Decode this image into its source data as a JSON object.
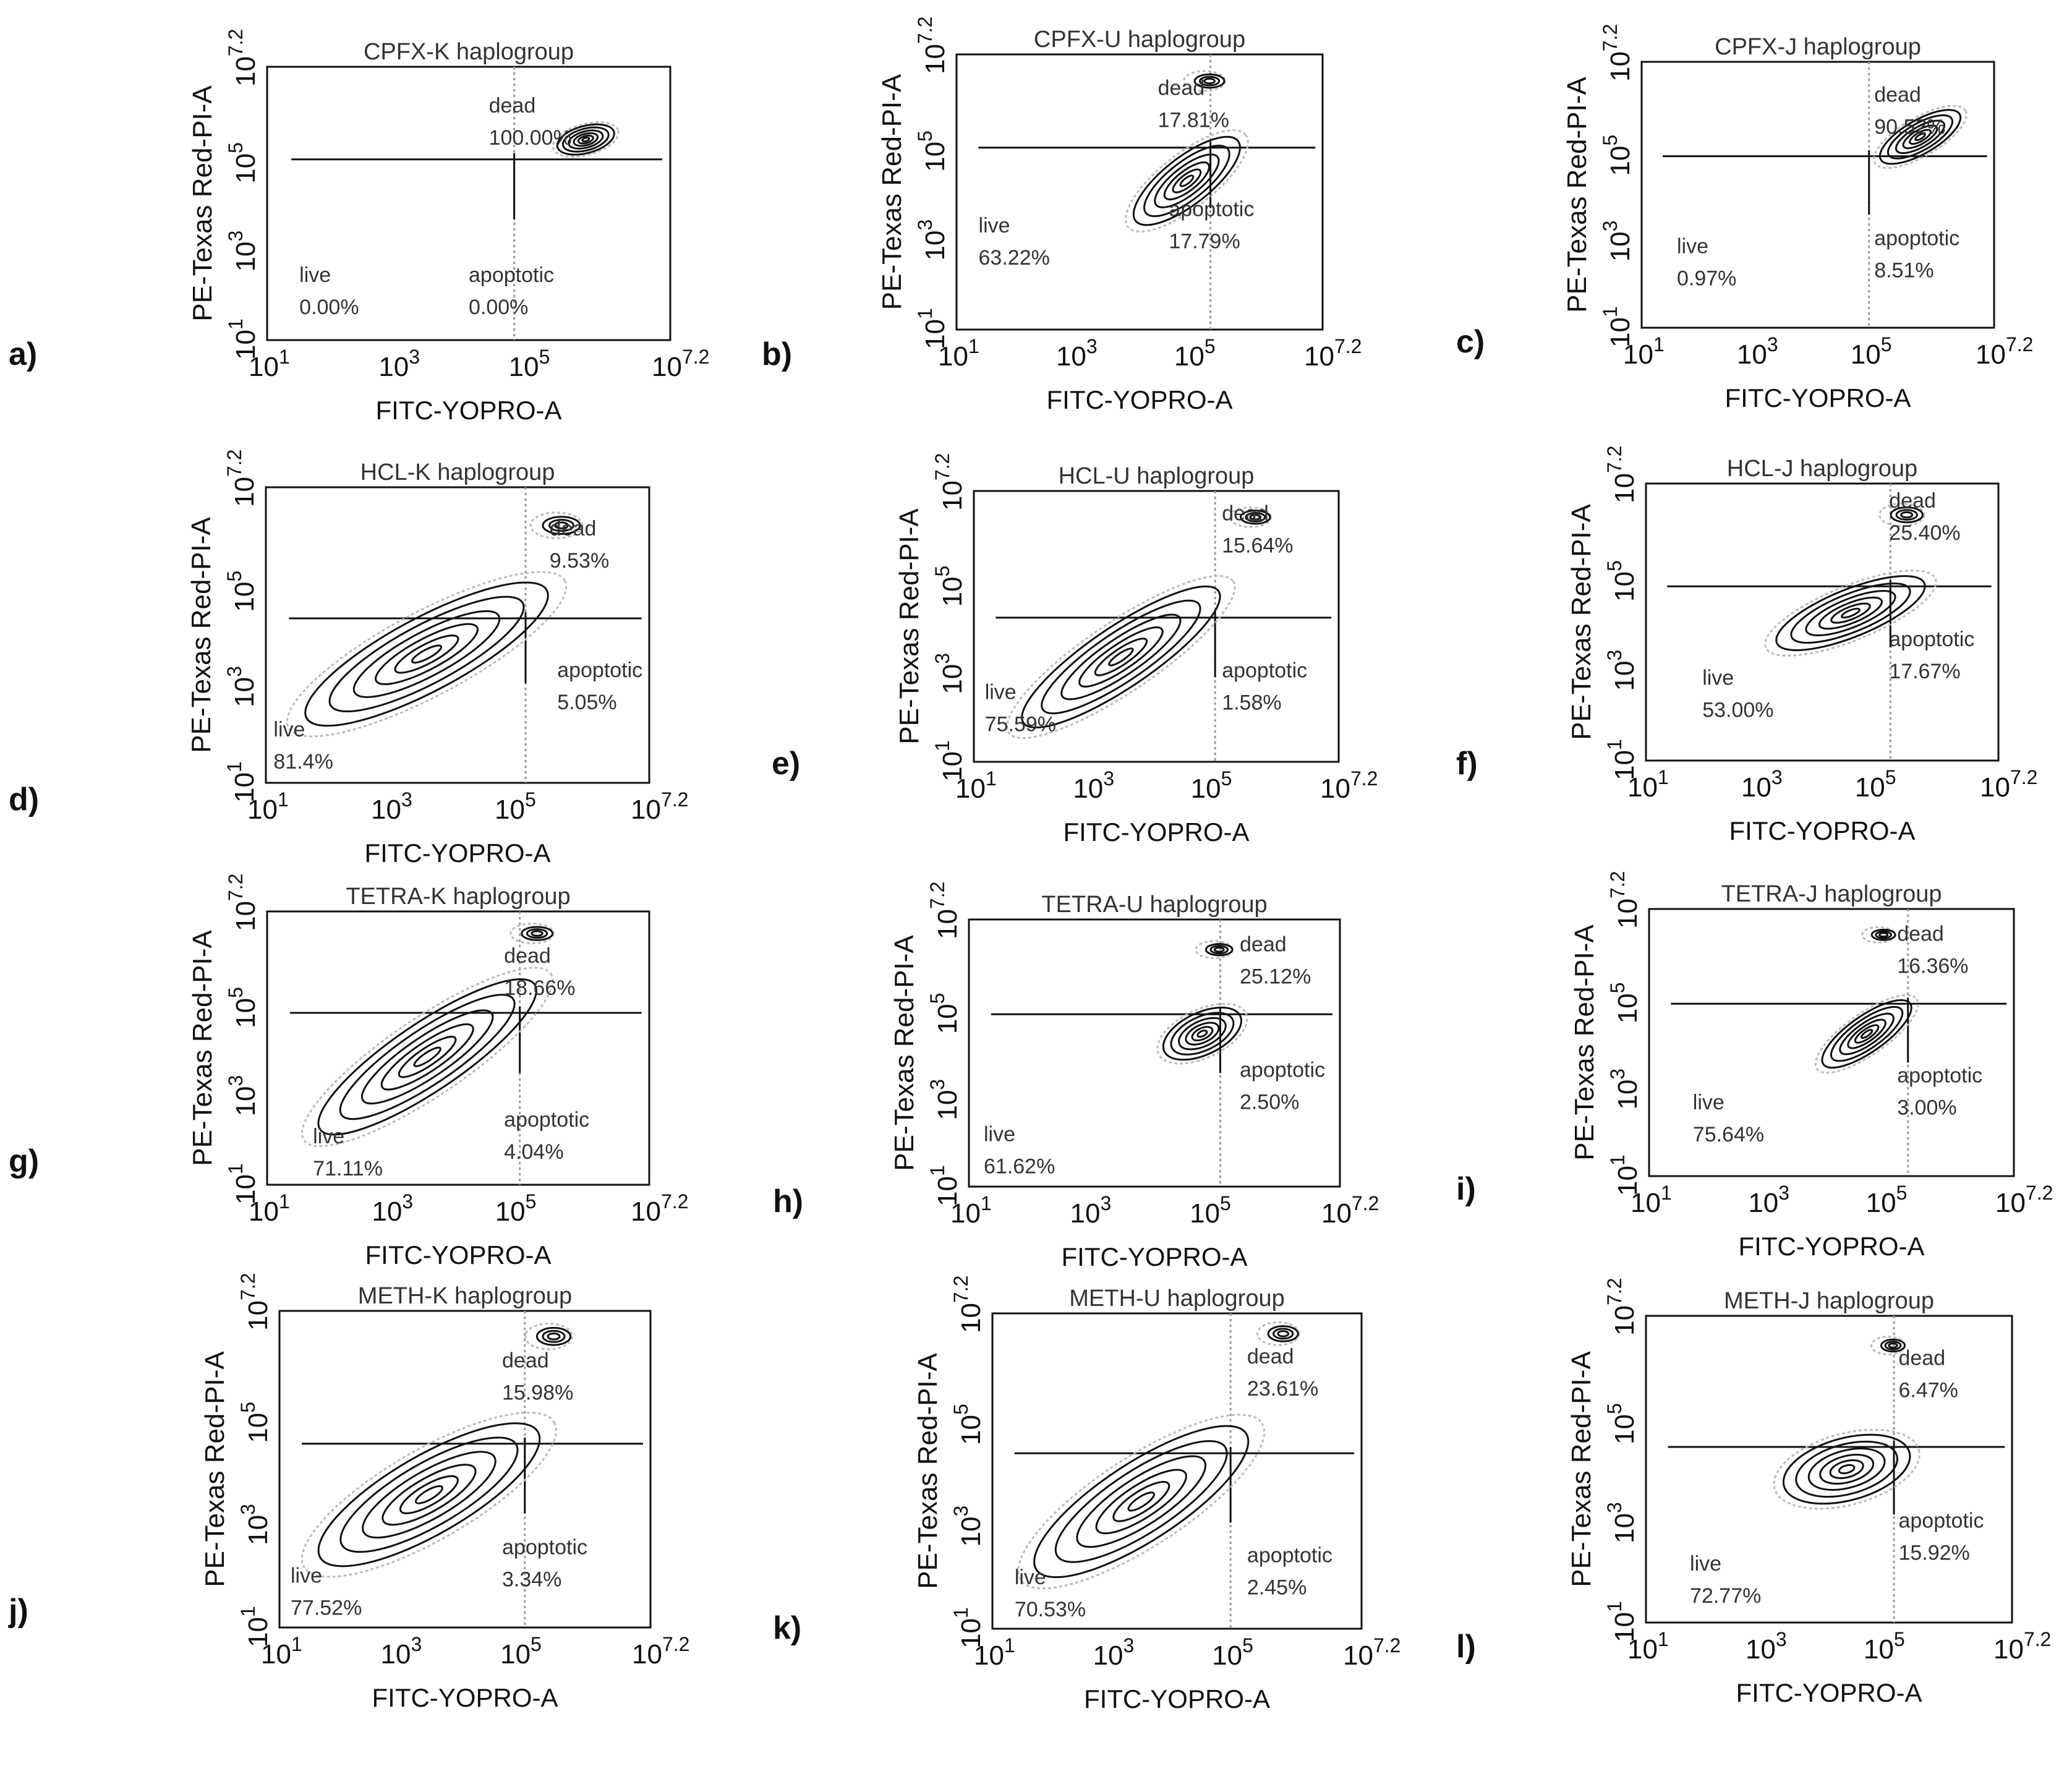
{
  "chart_data": [
    {
      "type": "scatter",
      "panel": "a)",
      "title": "CPFX-K haplogroup",
      "xlabel": "FITC-YOPRO-A",
      "ylabel": "PE-Texas Red-PI-A",
      "xticks": [
        {
          "base": "10",
          "exp": "1"
        },
        {
          "base": "10",
          "exp": "3"
        },
        {
          "base": "10",
          "exp": "5"
        },
        {
          "base": "10",
          "exp": "7.2"
        }
      ],
      "yticks": [
        {
          "base": "10",
          "exp": "1"
        },
        {
          "base": "10",
          "exp": "3"
        },
        {
          "base": "10",
          "exp": "5"
        },
        {
          "base": "10",
          "exp": "7.2"
        }
      ],
      "quadrants": [
        {
          "label": "dead",
          "value": "100.00%"
        },
        {
          "label": "live",
          "value": "0.00%"
        },
        {
          "label": "apoptotic",
          "value": "0.00%"
        }
      ]
    },
    {
      "type": "scatter",
      "panel": "b)",
      "title": "CPFX-U haplogroup",
      "xlabel": "FITC-YOPRO-A",
      "ylabel": "PE-Texas Red-PI-A",
      "xticks": [
        {
          "base": "10",
          "exp": "1"
        },
        {
          "base": "10",
          "exp": "3"
        },
        {
          "base": "10",
          "exp": "5"
        },
        {
          "base": "10",
          "exp": "7.2"
        }
      ],
      "yticks": [
        {
          "base": "10",
          "exp": "1"
        },
        {
          "base": "10",
          "exp": "3"
        },
        {
          "base": "10",
          "exp": "5"
        },
        {
          "base": "10",
          "exp": "7.2"
        }
      ],
      "quadrants": [
        {
          "label": "dead",
          "value": "17.81%"
        },
        {
          "label": "live",
          "value": "63.22%"
        },
        {
          "label": "apoptotic",
          "value": "17.79%"
        }
      ]
    },
    {
      "type": "scatter",
      "panel": "c)",
      "title": "CPFX-J haplogroup",
      "xlabel": "FITC-YOPRO-A",
      "ylabel": "PE-Texas Red-PI-A",
      "xticks": [
        {
          "base": "10",
          "exp": "1"
        },
        {
          "base": "10",
          "exp": "3"
        },
        {
          "base": "10",
          "exp": "5"
        },
        {
          "base": "10",
          "exp": "7.2"
        }
      ],
      "yticks": [
        {
          "base": "10",
          "exp": "1"
        },
        {
          "base": "10",
          "exp": "3"
        },
        {
          "base": "10",
          "exp": "5"
        },
        {
          "base": "10",
          "exp": "7.2"
        }
      ],
      "quadrants": [
        {
          "label": "dead",
          "value": "90.52%"
        },
        {
          "label": "live",
          "value": "0.97%"
        },
        {
          "label": "apoptotic",
          "value": "8.51%"
        }
      ]
    },
    {
      "type": "scatter",
      "panel": "d)",
      "title": "HCL-K haplogroup",
      "xlabel": "FITC-YOPRO-A",
      "ylabel": "PE-Texas Red-PI-A",
      "xticks": [
        {
          "base": "10",
          "exp": "1"
        },
        {
          "base": "10",
          "exp": "3"
        },
        {
          "base": "10",
          "exp": "5"
        },
        {
          "base": "10",
          "exp": "7.2"
        }
      ],
      "yticks": [
        {
          "base": "10",
          "exp": "1"
        },
        {
          "base": "10",
          "exp": "3"
        },
        {
          "base": "10",
          "exp": "5"
        },
        {
          "base": "10",
          "exp": "7.2"
        }
      ],
      "quadrants": [
        {
          "label": "dead",
          "value": "9.53%"
        },
        {
          "label": "live",
          "value": "81.4%"
        },
        {
          "label": "apoptotic",
          "value": "5.05%"
        }
      ]
    },
    {
      "type": "scatter",
      "panel": "e)",
      "title": "HCL-U haplogroup",
      "xlabel": "FITC-YOPRO-A",
      "ylabel": "PE-Texas Red-PI-A",
      "xticks": [
        {
          "base": "10",
          "exp": "1"
        },
        {
          "base": "10",
          "exp": "3"
        },
        {
          "base": "10",
          "exp": "5"
        },
        {
          "base": "10",
          "exp": "7.2"
        }
      ],
      "yticks": [
        {
          "base": "10",
          "exp": "1"
        },
        {
          "base": "10",
          "exp": "3"
        },
        {
          "base": "10",
          "exp": "5"
        },
        {
          "base": "10",
          "exp": "7.2"
        }
      ],
      "quadrants": [
        {
          "label": "dead",
          "value": "15.64%"
        },
        {
          "label": "live",
          "value": "75.59%"
        },
        {
          "label": "apoptotic",
          "value": "1.58%"
        }
      ]
    },
    {
      "type": "scatter",
      "panel": "f)",
      "title": "HCL-J haplogroup",
      "xlabel": "FITC-YOPRO-A",
      "ylabel": "PE-Texas Red-PI-A",
      "xticks": [
        {
          "base": "10",
          "exp": "1"
        },
        {
          "base": "10",
          "exp": "3"
        },
        {
          "base": "10",
          "exp": "5"
        },
        {
          "base": "10",
          "exp": "7.2"
        }
      ],
      "yticks": [
        {
          "base": "10",
          "exp": "1"
        },
        {
          "base": "10",
          "exp": "3"
        },
        {
          "base": "10",
          "exp": "5"
        },
        {
          "base": "10",
          "exp": "7.2"
        }
      ],
      "quadrants": [
        {
          "label": "dead",
          "value": "25.40%"
        },
        {
          "label": "live",
          "value": "53.00%"
        },
        {
          "label": "apoptotic",
          "value": "17.67%"
        }
      ]
    },
    {
      "type": "scatter",
      "panel": "g)",
      "title": "TETRA-K haplogroup",
      "xlabel": "FITC-YOPRO-A",
      "ylabel": "PE-Texas Red-PI-A",
      "xticks": [
        {
          "base": "10",
          "exp": "1"
        },
        {
          "base": "10",
          "exp": "3"
        },
        {
          "base": "10",
          "exp": "5"
        },
        {
          "base": "10",
          "exp": "7.2"
        }
      ],
      "yticks": [
        {
          "base": "10",
          "exp": "1"
        },
        {
          "base": "10",
          "exp": "3"
        },
        {
          "base": "10",
          "exp": "5"
        },
        {
          "base": "10",
          "exp": "7.2"
        }
      ],
      "quadrants": [
        {
          "label": "dead",
          "value": "18.66%"
        },
        {
          "label": "live",
          "value": "71.11%"
        },
        {
          "label": "apoptotic",
          "value": "4.04%"
        }
      ]
    },
    {
      "type": "scatter",
      "panel": "h)",
      "title": "TETRA-U haplogroup",
      "xlabel": "FITC-YOPRO-A",
      "ylabel": "PE-Texas Red-PI-A",
      "xticks": [
        {
          "base": "10",
          "exp": "1"
        },
        {
          "base": "10",
          "exp": "3"
        },
        {
          "base": "10",
          "exp": "5"
        },
        {
          "base": "10",
          "exp": "7.2"
        }
      ],
      "yticks": [
        {
          "base": "10",
          "exp": "1"
        },
        {
          "base": "10",
          "exp": "3"
        },
        {
          "base": "10",
          "exp": "5"
        },
        {
          "base": "10",
          "exp": "7.2"
        }
      ],
      "quadrants": [
        {
          "label": "dead",
          "value": "25.12%"
        },
        {
          "label": "live",
          "value": "61.62%"
        },
        {
          "label": "apoptotic",
          "value": "2.50%"
        }
      ]
    },
    {
      "type": "scatter",
      "panel": "i)",
      "title": "TETRA-J haplogroup",
      "xlabel": "FITC-YOPRO-A",
      "ylabel": "PE-Texas Red-PI-A",
      "xticks": [
        {
          "base": "10",
          "exp": "1"
        },
        {
          "base": "10",
          "exp": "3"
        },
        {
          "base": "10",
          "exp": "5"
        },
        {
          "base": "10",
          "exp": "7.2"
        }
      ],
      "yticks": [
        {
          "base": "10",
          "exp": "1"
        },
        {
          "base": "10",
          "exp": "3"
        },
        {
          "base": "10",
          "exp": "5"
        },
        {
          "base": "10",
          "exp": "7.2"
        }
      ],
      "quadrants": [
        {
          "label": "dead",
          "value": "16.36%"
        },
        {
          "label": "live",
          "value": "75.64%"
        },
        {
          "label": "apoptotic",
          "value": "3.00%"
        }
      ]
    },
    {
      "type": "scatter",
      "panel": "j)",
      "title": "METH-K haplogroup",
      "xlabel": "FITC-YOPRO-A",
      "ylabel": "PE-Texas Red-PI-A",
      "xticks": [
        {
          "base": "10",
          "exp": "1"
        },
        {
          "base": "10",
          "exp": "3"
        },
        {
          "base": "10",
          "exp": "5"
        },
        {
          "base": "10",
          "exp": "7.2"
        }
      ],
      "yticks": [
        {
          "base": "10",
          "exp": "1"
        },
        {
          "base": "10",
          "exp": "3"
        },
        {
          "base": "10",
          "exp": "5"
        },
        {
          "base": "10",
          "exp": "7.2"
        }
      ],
      "quadrants": [
        {
          "label": "dead",
          "value": "15.98%"
        },
        {
          "label": "live",
          "value": "77.52%"
        },
        {
          "label": "apoptotic",
          "value": "3.34%"
        }
      ]
    },
    {
      "type": "scatter",
      "panel": "k)",
      "title": "METH-U haplogroup",
      "xlabel": "FITC-YOPRO-A",
      "ylabel": "PE-Texas Red-PI-A",
      "xticks": [
        {
          "base": "10",
          "exp": "1"
        },
        {
          "base": "10",
          "exp": "3"
        },
        {
          "base": "10",
          "exp": "5"
        },
        {
          "base": "10",
          "exp": "7.2"
        }
      ],
      "yticks": [
        {
          "base": "10",
          "exp": "1"
        },
        {
          "base": "10",
          "exp": "3"
        },
        {
          "base": "10",
          "exp": "5"
        },
        {
          "base": "10",
          "exp": "7.2"
        }
      ],
      "quadrants": [
        {
          "label": "dead",
          "value": "23.61%"
        },
        {
          "label": "live",
          "value": "70.53%"
        },
        {
          "label": "apoptotic",
          "value": "2.45%"
        }
      ]
    },
    {
      "type": "scatter",
      "panel": "l)",
      "title": "METH-J haplogroup",
      "xlabel": "FITC-YOPRO-A",
      "ylabel": "PE-Texas Red-PI-A",
      "xticks": [
        {
          "base": "10",
          "exp": "1"
        },
        {
          "base": "10",
          "exp": "3"
        },
        {
          "base": "10",
          "exp": "5"
        },
        {
          "base": "10",
          "exp": "7.2"
        }
      ],
      "yticks": [
        {
          "base": "10",
          "exp": "1"
        },
        {
          "base": "10",
          "exp": "3"
        },
        {
          "base": "10",
          "exp": "5"
        },
        {
          "base": "10",
          "exp": "7.2"
        }
      ],
      "quadrants": [
        {
          "label": "dead",
          "value": "6.47%"
        },
        {
          "label": "live",
          "value": "72.77%"
        },
        {
          "label": "apoptotic",
          "value": "15.92%"
        }
      ]
    }
  ]
}
